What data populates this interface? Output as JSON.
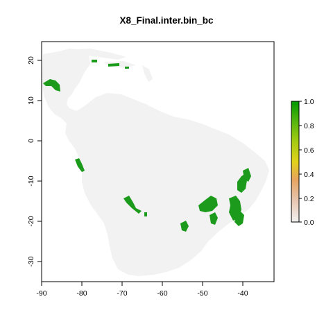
{
  "title": "X8_Final.inter.bin_bc",
  "map": {
    "x_ticks": [
      "-90",
      "-80",
      "-70",
      "-60",
      "-50",
      "-40"
    ],
    "y_ticks": [
      "20",
      "10",
      "0",
      "-10",
      "-20",
      "-30"
    ],
    "x_range": [
      -90,
      -31
    ],
    "y_range": [
      -35,
      25
    ],
    "land_color": "#f2f2f2",
    "presence_color": "#1b9a1b"
  },
  "legend": {
    "ticks": [
      "1.0",
      "0.8",
      "0.6",
      "0.4",
      "0.2",
      "0.0"
    ],
    "scale": [
      "#f2f2f2",
      "#e7c6b0",
      "#e6a35f",
      "#e2d21a",
      "#9fca12",
      "#4cb20e",
      "#009900"
    ]
  }
}
